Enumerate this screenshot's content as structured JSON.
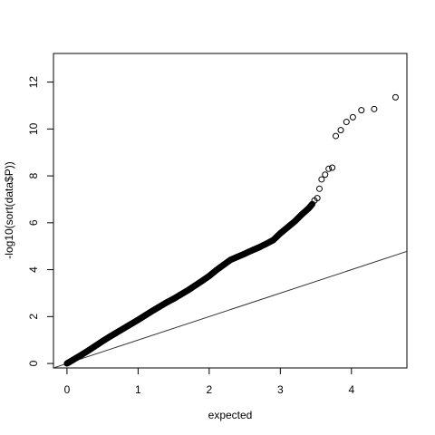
{
  "chart_data": {
    "type": "scatter",
    "title": "",
    "xlabel": "expected",
    "ylabel": "-log10(sort(data$P))",
    "xlim": [
      -0.19,
      4.78
    ],
    "ylim": [
      -0.19,
      13.22
    ],
    "x_ticks": [
      0,
      1,
      2,
      3,
      4
    ],
    "y_ticks": [
      0,
      2,
      4,
      6,
      8,
      10,
      12
    ],
    "grid": false,
    "legend": "none",
    "reference_line": {
      "intercept": 0,
      "slope": 1,
      "label": ""
    },
    "point_marker": "open-circle",
    "dense_curve": {
      "x": [
        0.0,
        0.1,
        0.2,
        0.3,
        0.4,
        0.5,
        0.6,
        0.7,
        0.8,
        0.9,
        1.0,
        1.1,
        1.2,
        1.3,
        1.4,
        1.5,
        1.6,
        1.7,
        1.8,
        1.9,
        2.0,
        2.1,
        2.2,
        2.3,
        2.4,
        2.5,
        2.6,
        2.7,
        2.8,
        2.9,
        3.0,
        3.1,
        3.2,
        3.3,
        3.4,
        3.45
      ],
      "y": [
        0.0,
        0.18,
        0.36,
        0.55,
        0.75,
        0.95,
        1.14,
        1.32,
        1.5,
        1.68,
        1.86,
        2.05,
        2.24,
        2.42,
        2.6,
        2.76,
        2.94,
        3.12,
        3.32,
        3.52,
        3.73,
        3.98,
        4.2,
        4.42,
        4.55,
        4.68,
        4.82,
        4.95,
        5.1,
        5.26,
        5.55,
        5.8,
        6.05,
        6.35,
        6.62,
        6.8
      ]
    },
    "tail_points": [
      {
        "x": 3.48,
        "y": 6.95
      },
      {
        "x": 3.52,
        "y": 7.05
      },
      {
        "x": 3.55,
        "y": 7.45
      },
      {
        "x": 3.58,
        "y": 7.85
      },
      {
        "x": 3.63,
        "y": 8.05
      },
      {
        "x": 3.68,
        "y": 8.3
      },
      {
        "x": 3.73,
        "y": 8.35
      },
      {
        "x": 3.78,
        "y": 9.7
      },
      {
        "x": 3.85,
        "y": 9.95
      },
      {
        "x": 3.93,
        "y": 10.3
      },
      {
        "x": 4.02,
        "y": 10.5
      },
      {
        "x": 4.14,
        "y": 10.8
      },
      {
        "x": 4.32,
        "y": 10.85
      },
      {
        "x": 4.62,
        "y": 11.35
      }
    ]
  }
}
